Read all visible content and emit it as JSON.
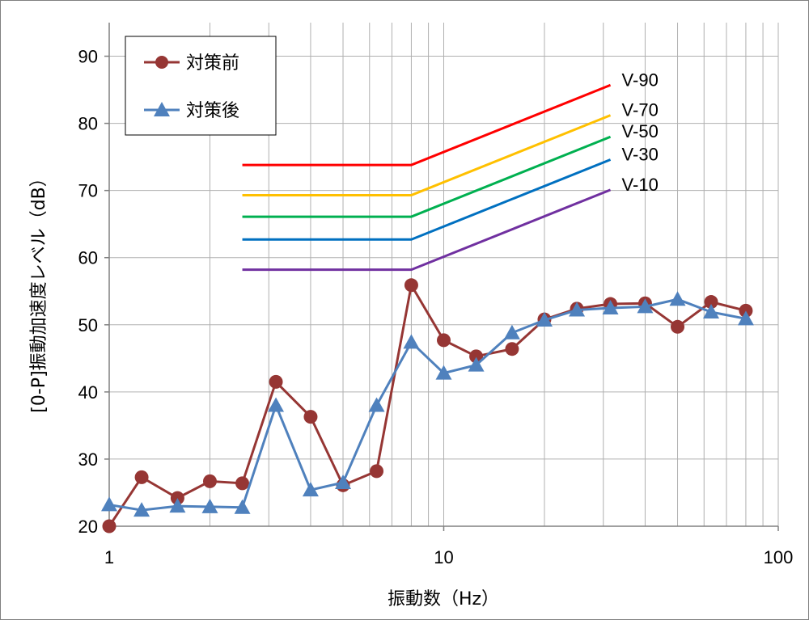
{
  "chart_data": {
    "type": "line",
    "xscale": "log",
    "xlim": [
      1,
      100
    ],
    "ylim": [
      20,
      95
    ],
    "xlabel": "振動数（Hz）",
    "ylabel": "[0-P]振動加速度レベル（dB）",
    "grid": true,
    "legend_position": "top-left",
    "x_ticks": [
      "1",
      "10",
      "100"
    ],
    "y_ticks": [
      "20",
      "30",
      "40",
      "50",
      "60",
      "70",
      "80",
      "90"
    ],
    "series": [
      {
        "name": "対策前",
        "color": "#963634",
        "marker": "circle",
        "x": [
          1,
          1.25,
          1.6,
          2,
          2.5,
          3.15,
          4,
          5,
          6.3,
          8,
          10,
          12.5,
          16,
          20,
          25,
          31.5,
          40,
          50,
          63,
          80
        ],
        "values": [
          20,
          27.3,
          24.2,
          26.7,
          26.4,
          41.5,
          36.3,
          26.1,
          28.2,
          55.9,
          47.7,
          45.3,
          46.4,
          50.8,
          52.4,
          53.1,
          53.2,
          49.7,
          53.4,
          52.1
        ]
      },
      {
        "name": "対策後",
        "color": "#4f81bd",
        "marker": "triangle",
        "x": [
          1,
          1.25,
          1.6,
          2,
          2.5,
          3.15,
          4,
          5,
          6.3,
          8,
          10,
          12.5,
          16,
          20,
          25,
          31.5,
          40,
          50,
          63,
          80
        ],
        "values": [
          23.2,
          22.4,
          23.0,
          22.9,
          22.8,
          38.0,
          25.4,
          26.5,
          38.0,
          47.4,
          42.8,
          44.0,
          48.8,
          50.7,
          52.2,
          52.5,
          52.7,
          53.8,
          51.9,
          50.9
        ]
      }
    ],
    "reference_lines": [
      {
        "name": "V-90",
        "color": "#ff0000",
        "x": [
          2.5,
          8,
          31.5
        ],
        "values": [
          73.8,
          73.8,
          85.7
        ]
      },
      {
        "name": "V-70",
        "color": "#ffc000",
        "x": [
          2.5,
          8,
          31.5
        ],
        "values": [
          69.3,
          69.3,
          81.2
        ]
      },
      {
        "name": "V-50",
        "color": "#00b050",
        "x": [
          2.5,
          8,
          31.5
        ],
        "values": [
          66.1,
          66.1,
          78.0
        ]
      },
      {
        "name": "V-30",
        "color": "#0070c0",
        "x": [
          2.5,
          8,
          31.5
        ],
        "values": [
          62.7,
          62.7,
          74.6
        ]
      },
      {
        "name": "V-10",
        "color": "#7030a0",
        "x": [
          2.5,
          8,
          31.5
        ],
        "values": [
          58.2,
          58.2,
          70.1
        ]
      }
    ]
  }
}
